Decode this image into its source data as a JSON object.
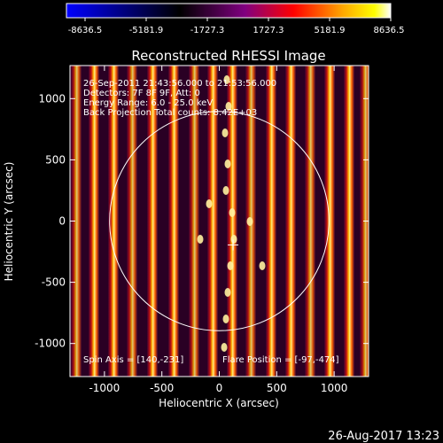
{
  "colorbar": {
    "tick_labels": [
      "-8636.5",
      "-5181.9",
      "-1727.3",
      "1727.3",
      "5181.9",
      "8636.5"
    ],
    "colors": [
      "#0000ff",
      "#000000",
      "#800080",
      "#ff0000",
      "#ffa500",
      "#ffff00",
      "#ffffff"
    ]
  },
  "plot": {
    "title": "Reconstructed RHESSI Image",
    "xlabel": "Heliocentric X (arcsec)",
    "ylabel": "Heliocentric Y (arcsec)",
    "xlim": [
      -1300,
      1300
    ],
    "ylim": [
      -1270,
      1270
    ],
    "xticks": [
      {
        "value": -1000,
        "label": "-1000"
      },
      {
        "value": -500,
        "label": "-500"
      },
      {
        "value": 0,
        "label": "0"
      },
      {
        "value": 500,
        "label": "500"
      },
      {
        "value": 1000,
        "label": "1000"
      }
    ],
    "yticks": [
      {
        "value": 1000,
        "label": "1000"
      },
      {
        "value": 500,
        "label": "500"
      },
      {
        "value": 0,
        "label": "0"
      },
      {
        "value": -500,
        "label": "-500"
      },
      {
        "value": -1000,
        "label": "-1000"
      }
    ],
    "annotations": [
      "26-Sep-2011 21:43:56.000 to 21:53:56.000",
      "Detectors: 7F 8F 9F, Att: 0",
      "Energy Range: 6.0 - 25.0 keV",
      "Back Projection     Total counts: 8.42E+03"
    ],
    "spin_axis": "Spin Axis = [140,-231]",
    "flare_position": "Flare Position = [-97,-474]",
    "solar_radius_arcsec": 955,
    "marker_position": [
      120,
      -195
    ]
  },
  "footer": {
    "timestamp": "26-Aug-2017 13:23"
  }
}
